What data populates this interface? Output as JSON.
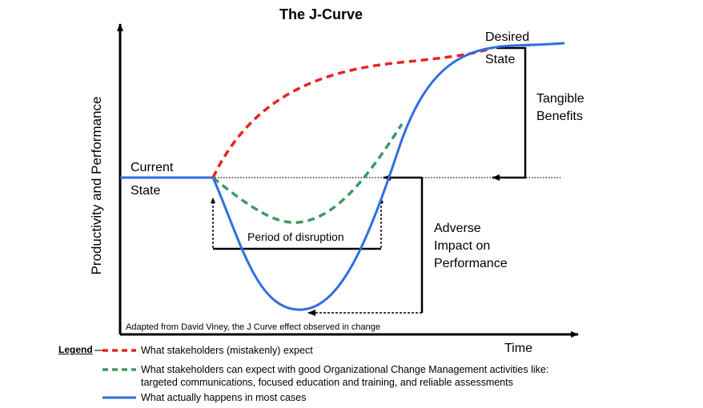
{
  "diagram": {
    "title": "The J-Curve",
    "y_axis_label": "Productivity and Performance",
    "x_axis_label": "Time",
    "labels": {
      "current_state_line1": "Current",
      "current_state_line2": "State",
      "desired_state_line1": "Desired",
      "desired_state_line2": "State",
      "tangible_benefits_line1": "Tangible",
      "tangible_benefits_line2": "Benefits",
      "adverse_impact_line1": "Adverse",
      "adverse_impact_line2": "Impact on",
      "adverse_impact_line3": "Performance",
      "period_of_disruption": "Period of disruption",
      "attribution": "Adapted from David Viney, the J Curve effect observed in change"
    },
    "colors": {
      "expected": "#e52521",
      "ocm": "#3c9a63",
      "actual": "#2f6fe0",
      "axis": "#000000"
    }
  },
  "legend": {
    "title": "Legend",
    "items": [
      {
        "style": "dashed-red",
        "lines": [
          "What stakeholders (mistakenly) expect"
        ]
      },
      {
        "style": "dashed-green",
        "lines": [
          "What stakeholders can expect with good Organizational Change Management activities like:",
          "targeted communications, focused education and training, and reliable assessments"
        ]
      },
      {
        "style": "solid-blue",
        "lines": [
          "What actually happens in most cases"
        ]
      }
    ]
  }
}
